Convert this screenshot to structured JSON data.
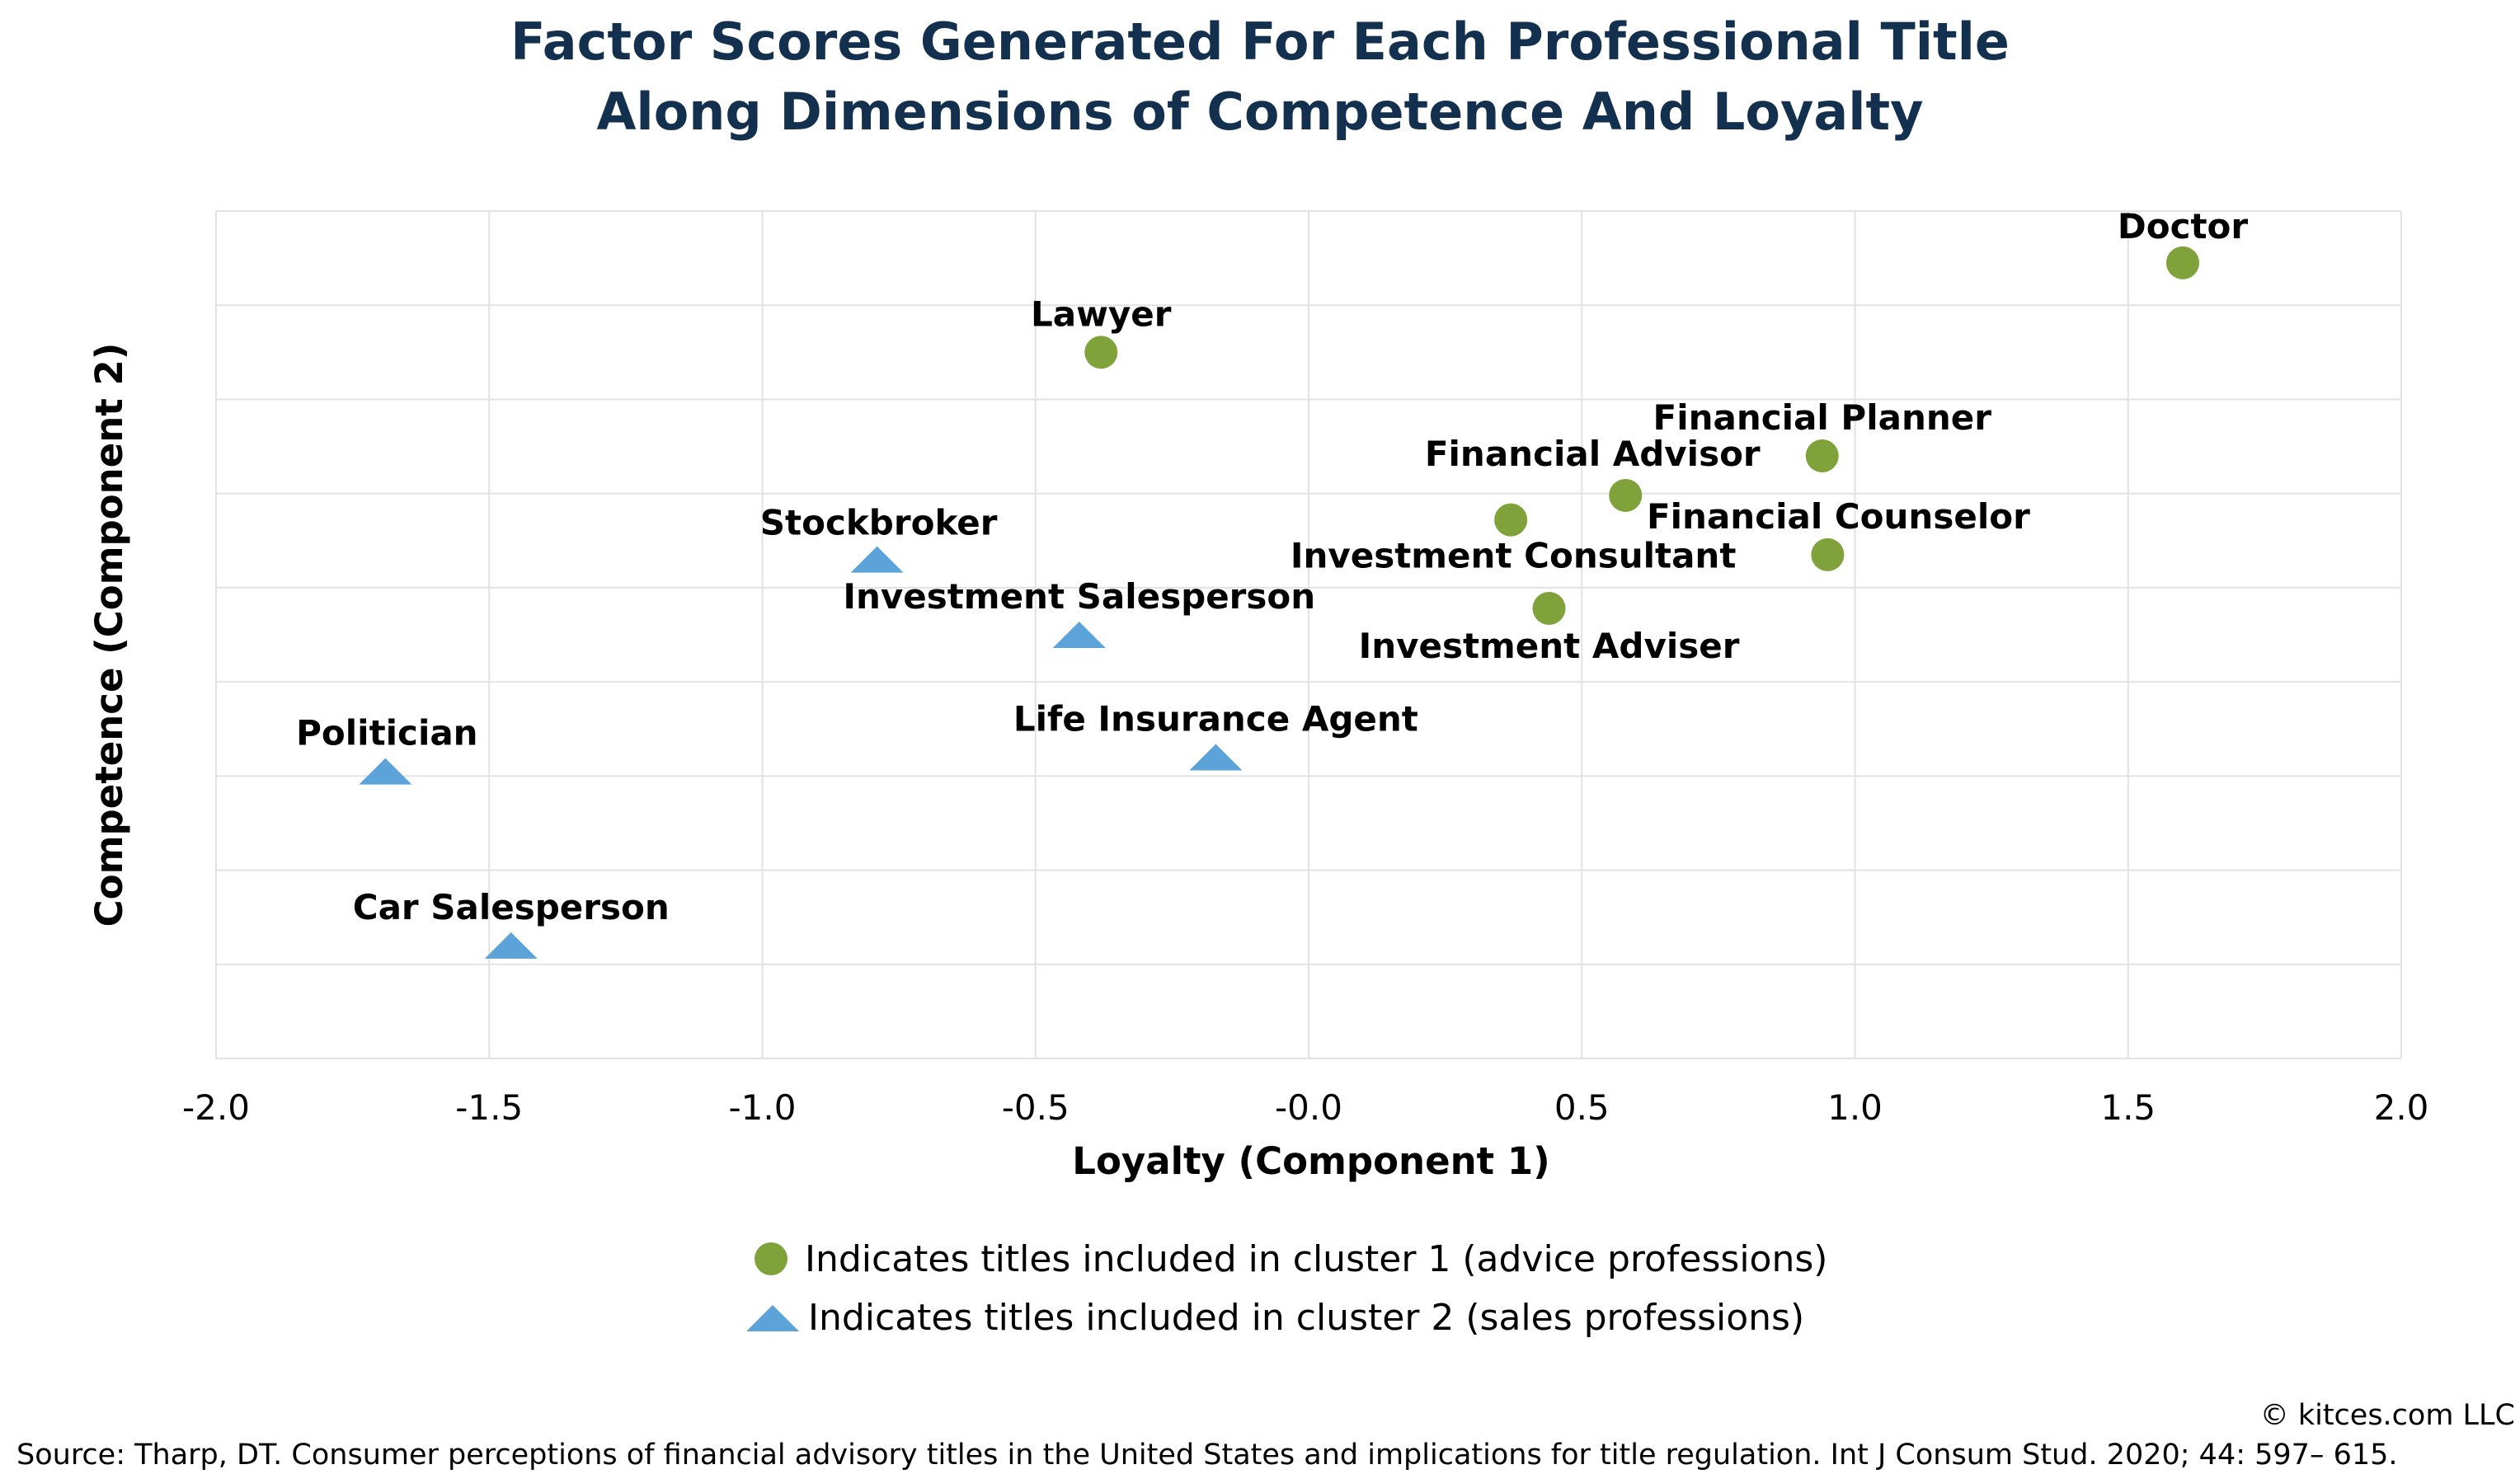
{
  "title_lines": [
    "Factor Scores Generated For Each Professional Title",
    "Along Dimensions of Competence And Loyalty"
  ],
  "chart_data": {
    "type": "scatter",
    "xlabel": "Loyalty (Component 1)",
    "ylabel": "Competence (Component 2)",
    "xlim": [
      -2.0,
      2.0
    ],
    "ylim": [
      0,
      9
    ],
    "x_ticks": [
      "-2.0",
      "-1.5",
      "-1.0",
      "-0.5",
      "-0.0",
      "0.5",
      "1.0",
      "1.5",
      "2.0"
    ],
    "y_tick_labels_shown": false,
    "grid": true,
    "series": [
      {
        "name": "Indicates titles included in cluster 1 (advice professions)",
        "marker": "circle",
        "color": "#7fa23b",
        "points": [
          {
            "label": "Doctor",
            "x": 1.6,
            "y": 8.45
          },
          {
            "label": "Lawyer",
            "x": -0.38,
            "y": 7.5
          },
          {
            "label": "Financial Planner",
            "x": 0.94,
            "y": 6.4
          },
          {
            "label": "Financial Advisor",
            "x": 0.58,
            "y": 5.98
          },
          {
            "label": "Investment Consultant",
            "x": 0.37,
            "y": 5.72
          },
          {
            "label": "Financial Counselor",
            "x": 0.95,
            "y": 5.35
          },
          {
            "label": "Investment Adviser",
            "x": 0.44,
            "y": 4.78
          }
        ]
      },
      {
        "name": "Indicates titles included in cluster 2 (sales professions)",
        "marker": "triangle",
        "color": "#5ba3d9",
        "points": [
          {
            "label": "Stockbroker",
            "x": -0.79,
            "y": 5.3
          },
          {
            "label": "Investment Salesperson",
            "x": -0.42,
            "y": 4.5
          },
          {
            "label": "Life Insurance Agent",
            "x": -0.17,
            "y": 3.2
          },
          {
            "label": "Politician",
            "x": -1.69,
            "y": 3.05
          },
          {
            "label": "Car Salesperson",
            "x": -1.46,
            "y": 1.2
          }
        ]
      }
    ]
  },
  "footer": {
    "copyright": "© kitces.com LLC",
    "source": "Source: Tharp, DT. Consumer perceptions of financial advisory titles in the United States and implications for title regulation. Int J Consum Stud. 2020; 44: 597– 615."
  }
}
